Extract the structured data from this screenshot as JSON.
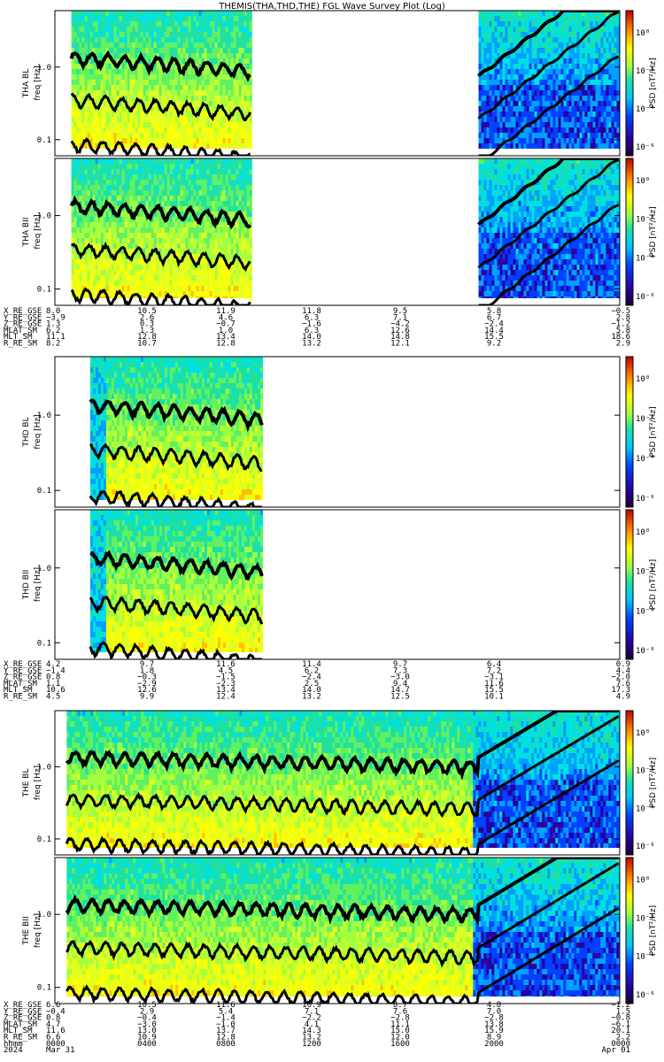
{
  "title": "THEMIS(THA,THD,THE) FGL Wave Survey Plot (Log)",
  "colorbar_label": "PSD [nT²/Hz]",
  "colorbar_ticks": [
    "10⁰",
    "10⁻²",
    "10⁻⁴",
    "10⁻⁶"
  ],
  "chart_data": [
    {
      "type": "heatmap",
      "name": "THA BL",
      "ylabel": "THA BL",
      "yunits": "freq [Hz]",
      "yscale": "log",
      "yticks": [
        "1.0",
        "0.1"
      ],
      "data_intervals": [
        [
          0.7,
          8.3
        ],
        [
          18.0,
          24.0
        ]
      ]
    },
    {
      "type": "heatmap",
      "name": "THA BII",
      "ylabel": "THA BII",
      "yunits": "freq [Hz]",
      "yscale": "log",
      "yticks": [
        "1.0",
        "0.1"
      ],
      "data_intervals": [
        [
          0.7,
          8.3
        ],
        [
          18.0,
          24.0
        ]
      ]
    },
    {
      "type": "heatmap",
      "name": "THD BL",
      "ylabel": "THD BL",
      "yunits": "freq [Hz]",
      "yscale": "log",
      "yticks": [
        "1.0",
        "0.1"
      ],
      "data_intervals": [
        [
          1.5,
          8.8
        ]
      ]
    },
    {
      "type": "heatmap",
      "name": "THD BII",
      "ylabel": "THD BII",
      "yunits": "freq [Hz]",
      "yscale": "log",
      "yticks": [
        "1.0",
        "0.1"
      ],
      "data_intervals": [
        [
          1.5,
          8.8
        ]
      ]
    },
    {
      "type": "heatmap",
      "name": "THE BL",
      "ylabel": "THE BL",
      "yunits": "freq [Hz]",
      "yscale": "log",
      "yticks": [
        "1.0",
        "0.1"
      ],
      "data_intervals": [
        [
          0.5,
          24.0
        ]
      ]
    },
    {
      "type": "heatmap",
      "name": "THE BII",
      "ylabel": "THE BII",
      "yunits": "freq [Hz]",
      "yscale": "log",
      "yticks": [
        "1.0",
        "0.1"
      ],
      "data_intervals": [
        [
          0.5,
          24.0
        ]
      ]
    }
  ],
  "ephemeris": [
    {
      "labels": [
        "X_RE_GSE",
        "Y_RE_GSE",
        "Z_RE_GSE",
        "MLAT_SM",
        "MLT_SM",
        "R_RE_SM"
      ],
      "columns": [
        [
          "8.0",
          "−3.9",
          "1.3",
          "6.2",
          "11.1",
          "8.2"
        ],
        [
          "10.5",
          "2.6",
          "0.3",
          "1.3",
          "12.8",
          "10.7"
        ],
        [
          "11.9",
          "4.6",
          "−0.7",
          "1.0",
          "13.4",
          "12.8"
        ],
        [
          "11.8",
          "6.3",
          "−1.6",
          "6.3",
          "14.0",
          "13.2"
        ],
        [
          "9.5",
          "7.1",
          "−4.2",
          "12.6",
          "14.8",
          "12.1"
        ],
        [
          "5.8",
          "6.7",
          "−2.4",
          "14.4",
          "15.5",
          "9.2"
        ],
        [
          "−0.5",
          "2.8",
          "−1.2",
          "5.8",
          "18.6",
          "2.9"
        ]
      ]
    },
    {
      "labels": [
        "X_RE_GSE",
        "Y_RE_GSE",
        "Z_RE_GSE",
        "MLAT_SM",
        "MLT_SM",
        "R_RE_SM"
      ],
      "columns": [
        [
          "4.2",
          "−1.4",
          "0.8",
          "1.1",
          "10.6",
          "4.5"
        ],
        [
          "9.7",
          "1.8",
          "−0.3",
          "−2.9",
          "12.6",
          "9.9"
        ],
        [
          "11.6",
          "4.5",
          "−1.5",
          "−2.3",
          "13.4",
          "12.4"
        ],
        [
          "11.4",
          "6.2",
          "−2.4",
          "2.5",
          "14.0",
          "13.2"
        ],
        [
          "9.7",
          "7.3",
          "−3.0",
          "9.4",
          "14.7",
          "12.5"
        ],
        [
          "6.4",
          "7.2",
          "−3.1",
          "11.6",
          "15.5",
          "10.1"
        ],
        [
          "0.9",
          "4.4",
          "−2.0",
          "7.6",
          "17.3",
          "4.9"
        ]
      ]
    },
    {
      "labels": [
        "X_RE_GSE",
        "Y_RE_GSE",
        "Z_RE_GSE",
        "MLAT_SM",
        "MLT_SM",
        "R_RE_SM",
        "hhmm",
        "2024"
      ],
      "columns": [
        [
          "6.6",
          "−0.4",
          "0.8",
          "4.7",
          "11.6",
          "6.6",
          "0000",
          "Mar 31"
        ],
        [
          "10.5",
          "2.9",
          "−0.4",
          "−3.0",
          "13.0",
          "10.9",
          "0400",
          ""
        ],
        [
          "11.6",
          "5.4",
          "−1.4",
          "−1.0",
          "13.7",
          "12.8",
          "0800",
          ""
        ],
        [
          "10.9",
          "7.1",
          "−2.2",
          "4.1",
          "14.3",
          "13.2",
          "1200",
          ""
        ],
        [
          "8.7",
          "7.6",
          "−2.8",
          "11.1",
          "15.0",
          "12.0",
          "1600",
          ""
        ],
        [
          "4.8",
          "7.0",
          "−2.8",
          "13.8",
          "15.9",
          "8.9",
          "2000",
          ""
        ],
        [
          "−1.2",
          "1.5",
          "−0.8",
          "−6.1",
          "20.1",
          "2.2",
          "0000",
          "Apr 01"
        ]
      ]
    }
  ]
}
